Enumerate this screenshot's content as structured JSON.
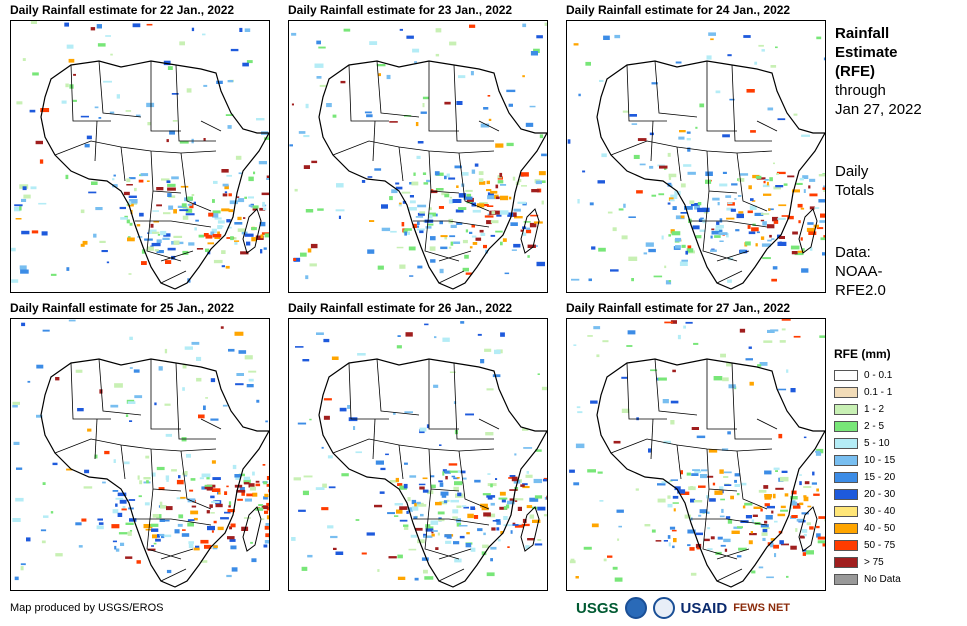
{
  "panels": [
    {
      "title": "Daily Rainfall estimate for 22 Jan., 2022"
    },
    {
      "title": "Daily Rainfall estimate for 23 Jan., 2022"
    },
    {
      "title": "Daily Rainfall estimate for 24 Jan., 2022"
    },
    {
      "title": "Daily Rainfall estimate for 25 Jan., 2022"
    },
    {
      "title": "Daily Rainfall estimate for 26 Jan., 2022"
    },
    {
      "title": "Daily Rainfall estimate for 27 Jan., 2022"
    }
  ],
  "side": {
    "title_line1": "Rainfall",
    "title_line2": "Estimate",
    "title_line3": "(RFE)",
    "through_line1": "through",
    "through_line2": "Jan 27, 2022",
    "totals_line1": "Daily",
    "totals_line2": "Totals",
    "data_line1": "Data:",
    "data_line2": "NOAA-",
    "data_line3": "RFE2.0"
  },
  "legend": {
    "title": "RFE (mm)",
    "items": [
      {
        "label": "0 - 0.1",
        "color": "#ffffff"
      },
      {
        "label": "0.1 - 1",
        "color": "#f2dcb8"
      },
      {
        "label": "1 - 2",
        "color": "#c8f0b4"
      },
      {
        "label": "2 - 5",
        "color": "#78e678"
      },
      {
        "label": "5 - 10",
        "color": "#b4ecf6"
      },
      {
        "label": "10 - 15",
        "color": "#78bef0"
      },
      {
        "label": "15 - 20",
        "color": "#3c8ce6"
      },
      {
        "label": "20 - 30",
        "color": "#1e5adc"
      },
      {
        "label": "30 - 40",
        "color": "#ffe678"
      },
      {
        "label": "40 - 50",
        "color": "#ffa500"
      },
      {
        "label": "50 - 75",
        "color": "#ff3c00"
      },
      {
        "label": "> 75",
        "color": "#a01e1e"
      },
      {
        "label": "No Data",
        "color": "#999999"
      }
    ]
  },
  "credit": "Map produced by USGS/EROS",
  "logos": {
    "usgs": "USGS",
    "usaid": "USAID",
    "fewsnet": "FEWS NET"
  }
}
